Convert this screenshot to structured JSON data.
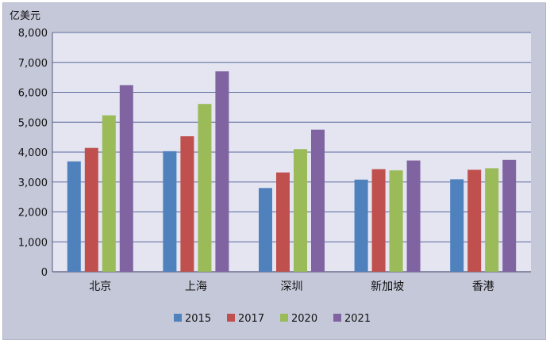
{
  "chart_data": {
    "type": "bar",
    "unit_label": "亿美元",
    "categories": [
      "北京",
      "上海",
      "深圳",
      "新加坡",
      "香港"
    ],
    "series": [
      {
        "name": "2015",
        "color": "#4f81bd",
        "values": [
          3690,
          4030,
          2800,
          3080,
          3090
        ]
      },
      {
        "name": "2017",
        "color": "#c0504d",
        "values": [
          4140,
          4530,
          3320,
          3430,
          3410
        ]
      },
      {
        "name": "2020",
        "color": "#9bbb59",
        "values": [
          5230,
          5610,
          4100,
          3390,
          3460
        ]
      },
      {
        "name": "2021",
        "color": "#8064a2",
        "values": [
          6240,
          6700,
          4750,
          3720,
          3740
        ]
      }
    ],
    "ylim": [
      0,
      8000
    ],
    "yticks": [
      0,
      1000,
      2000,
      3000,
      4000,
      5000,
      6000,
      7000,
      8000
    ],
    "ytick_labels": [
      "0",
      "1,000",
      "2,000",
      "3,000",
      "4,000",
      "5,000",
      "6,000",
      "7,000",
      "8,000"
    ],
    "grid": true,
    "legend_position": "bottom"
  }
}
